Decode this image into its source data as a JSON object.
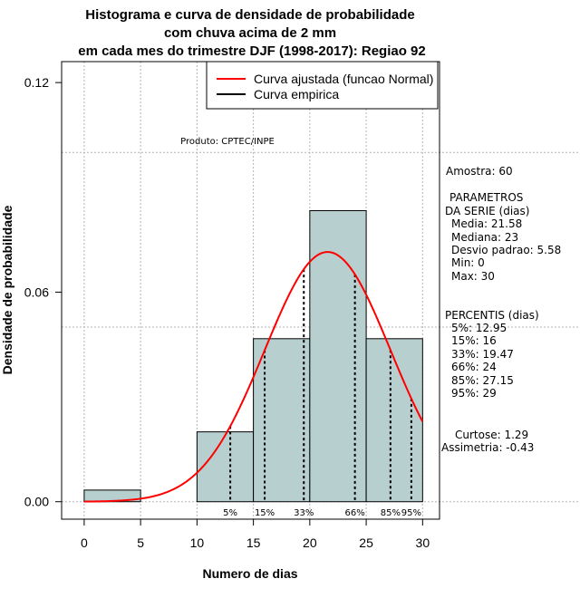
{
  "chart_data": {
    "type": "histogram",
    "title": [
      "Histograma e curva de densidade de probabilidade",
      "com chuva acima de 2 mm",
      "em cada mes do trimestre DJF (1998-2017): Regiao 92"
    ],
    "xlabel": "Numero de dias",
    "ylabel": "Densidade de probabilidade",
    "xlim": [
      -2,
      31.5
    ],
    "ylim": [
      -0.005,
      0.126
    ],
    "xticks": [
      0,
      5,
      10,
      15,
      20,
      25,
      30
    ],
    "xtick_labels": [
      "0",
      "5",
      "10",
      "15",
      "20",
      "25",
      "30"
    ],
    "yticks": [
      0.0,
      0.06,
      0.12
    ],
    "ytick_labels": [
      "0.00",
      "0.06",
      "0.12"
    ],
    "hgrid": [
      0.0,
      0.05,
      0.1
    ],
    "bins": [
      {
        "start": 0,
        "end": 5,
        "density": 0.00333
      },
      {
        "start": 5,
        "end": 10,
        "density": 0.0
      },
      {
        "start": 10,
        "end": 15,
        "density": 0.02
      },
      {
        "start": 15,
        "end": 20,
        "density": 0.04667
      },
      {
        "start": 20,
        "end": 25,
        "density": 0.08333
      },
      {
        "start": 25,
        "end": 30,
        "density": 0.04667
      }
    ],
    "normal_fit": {
      "mean": 21.58,
      "sd": 5.58,
      "x_from": 0,
      "x_to": 30
    },
    "percentile_lines": [
      {
        "label": "5%",
        "x": 12.95
      },
      {
        "label": "15%",
        "x": 16
      },
      {
        "label": "33%",
        "x": 19.47
      },
      {
        "label": "66%",
        "x": 24
      },
      {
        "label": "85%",
        "x": 27.15
      },
      {
        "label": "95%",
        "x": 29
      }
    ],
    "legend": {
      "position": "top-right",
      "entries": [
        {
          "label": "Curva ajustada (funcao Normal)",
          "color": "#ff0000"
        },
        {
          "label": "Curva empirica",
          "color": "#000000"
        }
      ]
    },
    "annotation": "Produto: CPTEC/INPE",
    "colors": {
      "bar_fill": "#b8cfcf",
      "bar_stroke": "#000000",
      "curve": "#ff0000",
      "grid": "#b4b4b4"
    }
  },
  "stats": {
    "amostra": "Amostra: 60",
    "parametros_title1": "PARAMETROS",
    "parametros_title2": "DA SERIE (dias)",
    "media": "Media: 21.58",
    "mediana": "Mediana: 23",
    "desvio": "Desvio padrao: 5.58",
    "min": "Min: 0",
    "max": "Max: 30",
    "percentis_title": "PERCENTIS (dias)",
    "p5": "5%: 12.95",
    "p15": "15%: 16",
    "p33": "33%: 19.47",
    "p66": "66%: 24",
    "p85": "85%: 27.15",
    "p95": "95%: 29",
    "curtose": "Curtose: 1.29",
    "assimetria": "Assimetria: -0.43"
  }
}
